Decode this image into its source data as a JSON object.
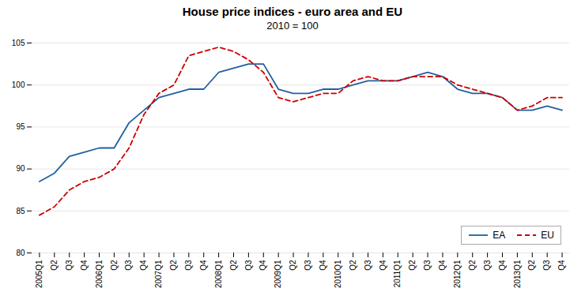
{
  "chart_data": {
    "type": "line",
    "title": "House price indices - euro area and EU",
    "subtitle": "2010 = 100",
    "categories": [
      "2005Q1",
      "Q2",
      "Q3",
      "Q4",
      "2006Q1",
      "Q2",
      "Q3",
      "Q4",
      "2007Q1",
      "Q2",
      "Q3",
      "Q4",
      "2008Q1",
      "Q2",
      "Q3",
      "Q4",
      "2009Q1",
      "Q2",
      "Q3",
      "Q4",
      "2010Q1",
      "Q2",
      "Q3",
      "Q4",
      "2011Q1",
      "Q2",
      "Q3",
      "Q4",
      "2012Q1",
      "Q2",
      "Q3",
      "Q4",
      "2013Q1",
      "Q2",
      "Q3",
      "Q4"
    ],
    "series": [
      {
        "name": "EA",
        "color": "#2060A0",
        "line_style": "solid",
        "values": [
          88.5,
          89.5,
          91.5,
          92.0,
          92.5,
          92.5,
          95.5,
          97.0,
          98.5,
          99.0,
          99.5,
          99.5,
          101.5,
          102.0,
          102.5,
          102.5,
          99.5,
          99.0,
          99.0,
          99.5,
          99.5,
          100.0,
          100.5,
          100.5,
          100.5,
          101.0,
          101.5,
          101.0,
          99.5,
          99.0,
          99.0,
          98.5,
          97.0,
          97.0,
          97.5,
          97.0
        ]
      },
      {
        "name": "EU",
        "color": "#CC0000",
        "line_style": "dashed",
        "values": [
          84.5,
          85.5,
          87.5,
          88.5,
          89.0,
          90.0,
          92.5,
          96.5,
          99.0,
          100.0,
          103.5,
          104.0,
          104.5,
          104.0,
          103.0,
          101.5,
          98.5,
          98.0,
          98.5,
          99.0,
          99.0,
          100.5,
          101.0,
          100.5,
          100.5,
          101.0,
          101.0,
          101.0,
          100.0,
          99.5,
          99.0,
          98.5,
          97.0,
          97.5,
          98.5,
          98.5
        ]
      }
    ],
    "ylim": [
      80,
      105
    ],
    "yticks": [
      80,
      85,
      90,
      95,
      100,
      105
    ],
    "grid": true,
    "legend": "lower right"
  }
}
